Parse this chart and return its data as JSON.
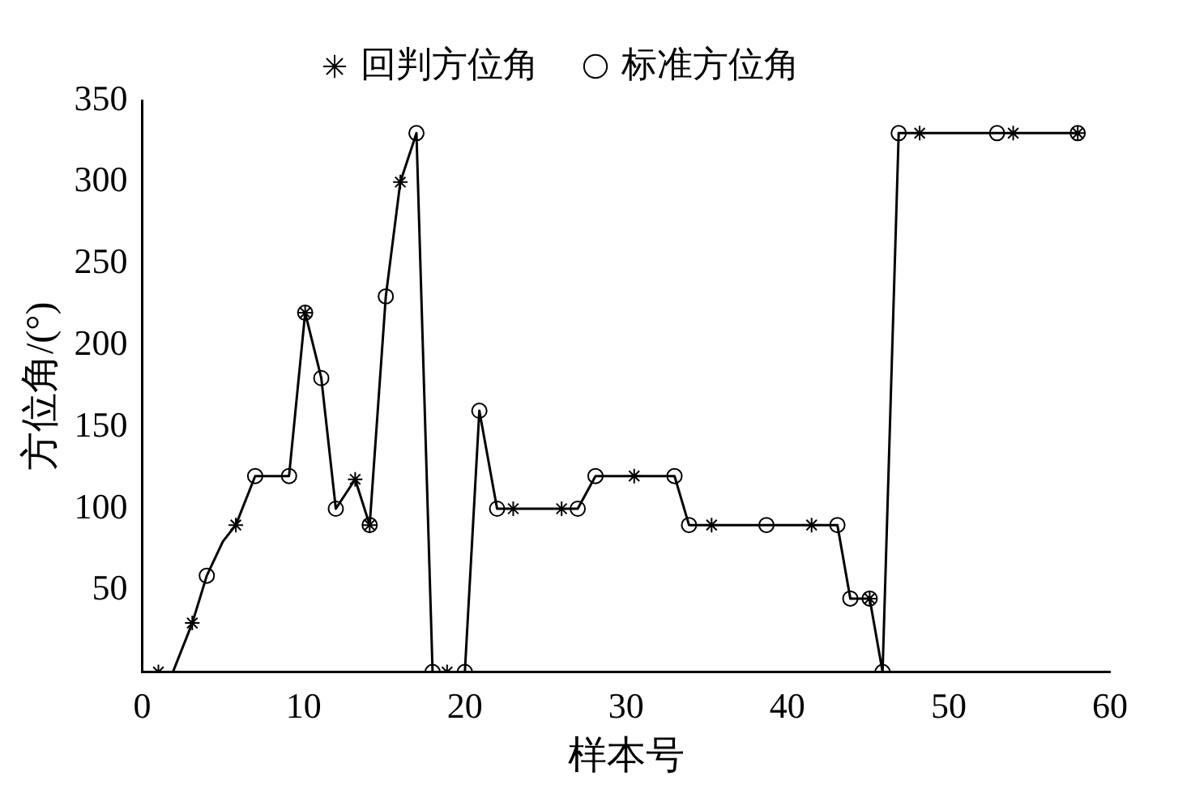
{
  "chart_data": {
    "type": "line",
    "xlabel": "样本号",
    "ylabel": "方位角/(°)",
    "xlim": [
      0,
      60
    ],
    "xticks": [
      0,
      10,
      20,
      30,
      40,
      50,
      60
    ],
    "ylim": [
      0,
      350
    ],
    "yticks": [
      50,
      100,
      150,
      200,
      250,
      300,
      350
    ],
    "grid": false,
    "legend": "top",
    "series": [
      {
        "type": "line",
        "color": "#000000",
        "marker": "none",
        "x": [
          1.0,
          1.9,
          3.1,
          4.0,
          5.0,
          5.8,
          7.0,
          9.1,
          10.1,
          11.1,
          12.0,
          13.2,
          14.1,
          15.1,
          16.0,
          17.0,
          18.0,
          18.9,
          20.0,
          20.9,
          22.0,
          23.0,
          26.0,
          27.0,
          28.1,
          30.5,
          33.0,
          33.9,
          35.3,
          38.7,
          41.5,
          43.1,
          43.9,
          45.1,
          45.9,
          46.9,
          48.2,
          53.0,
          54.0,
          58.0
        ],
        "values": [
          0,
          0,
          30,
          59,
          80,
          90,
          120,
          120,
          220,
          180,
          100,
          118,
          90,
          230,
          300,
          330,
          0,
          0,
          0,
          160,
          100,
          100,
          100,
          100,
          120,
          120,
          120,
          90,
          90,
          90,
          90,
          90,
          45,
          45,
          0,
          330,
          330,
          330,
          330,
          330
        ]
      },
      {
        "type": "scatter",
        "name": "回判方位角",
        "color": "#000000",
        "marker": "cross",
        "x": [
          1.0,
          3.1,
          5.8,
          10.1,
          13.2,
          14.1,
          16.0,
          18.9,
          23.0,
          26.0,
          30.5,
          35.3,
          41.5,
          45.1,
          48.2,
          54.0,
          58.0
        ],
        "values": [
          0,
          30,
          90,
          220,
          118,
          90,
          300,
          0,
          100,
          100,
          120,
          90,
          90,
          45,
          330,
          330,
          330
        ]
      },
      {
        "type": "scatter",
        "name": "标准方位角",
        "color": "#000000",
        "marker": "circle",
        "x": [
          4.0,
          7.0,
          9.1,
          10.1,
          11.1,
          12.0,
          14.1,
          15.1,
          17.0,
          18.0,
          20.0,
          20.9,
          22.0,
          27.0,
          28.1,
          33.0,
          33.9,
          38.7,
          43.1,
          43.9,
          45.1,
          45.9,
          46.9,
          53.0,
          58.0
        ],
        "values": [
          59,
          120,
          120,
          220,
          180,
          100,
          90,
          230,
          330,
          0,
          0,
          160,
          100,
          100,
          120,
          120,
          90,
          90,
          90,
          45,
          45,
          0,
          330,
          330,
          330
        ]
      }
    ]
  }
}
